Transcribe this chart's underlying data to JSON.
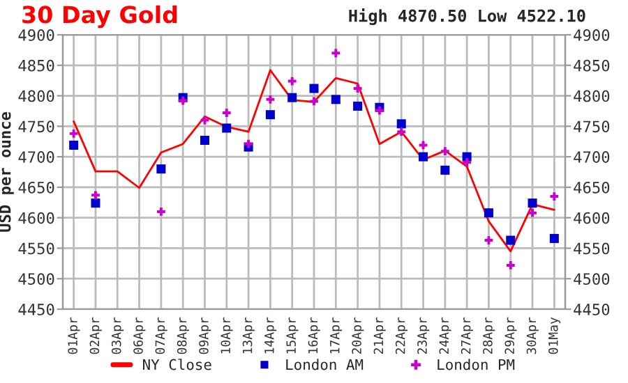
{
  "chart_data": {
    "type": "line",
    "title": "30 Day Gold",
    "ylabel": "USD per ounce",
    "annotations": [
      "High 4870.50 Low 4522.10"
    ],
    "categories": [
      "01Apr",
      "02Apr",
      "03Apr",
      "06Apr",
      "07Apr",
      "08Apr",
      "09Apr",
      "10Apr",
      "13Apr",
      "14Apr",
      "15Apr",
      "16Apr",
      "17Apr",
      "20Apr",
      "21Apr",
      "22Apr",
      "23Apr",
      "24Apr",
      "27Apr",
      "28Apr",
      "29Apr",
      "30Apr",
      "01May"
    ],
    "series": [
      {
        "name": "NY Close",
        "color": "#ff0000",
        "marker": "none",
        "values": [
          4758,
          4676,
          4676,
          4649,
          4707,
          4721,
          4766,
          4749,
          4741,
          4842,
          4793,
          4790,
          4829,
          4820,
          4721,
          4741,
          4695,
          4710,
          4684,
          4594,
          4545,
          4622,
          4613
        ]
      },
      {
        "name": "London AM",
        "type": "scatter",
        "color": "#0000cc",
        "marker": "square",
        "values": [
          4719,
          4624,
          null,
          null,
          4680,
          4797,
          4727,
          4747,
          4716,
          4769,
          4797,
          4812,
          4794,
          4783,
          4781,
          4754,
          4700,
          4678,
          4700,
          4608,
          4563,
          4624,
          4566
        ]
      },
      {
        "name": "London PM",
        "type": "scatter",
        "color": "#cc00cc",
        "marker": "cross",
        "values": [
          4738,
          4637,
          null,
          null,
          4610,
          4792,
          4760,
          4772,
          4721,
          4794,
          4824,
          4791,
          4870,
          4812,
          4776,
          4741,
          4719,
          4709,
          4691,
          4563,
          4522,
          4608,
          4635
        ]
      }
    ],
    "ylim": [
      4450,
      4900
    ],
    "yticks": [
      4450,
      4500,
      4550,
      4600,
      4650,
      4700,
      4750,
      4800,
      4850,
      4900
    ],
    "y2lim": [
      4450,
      4900
    ],
    "y2ticks": [
      4450,
      4500,
      4550,
      4600,
      4650,
      4700,
      4750,
      4800,
      4850,
      4900
    ],
    "grid": true,
    "legend": "bottom"
  }
}
